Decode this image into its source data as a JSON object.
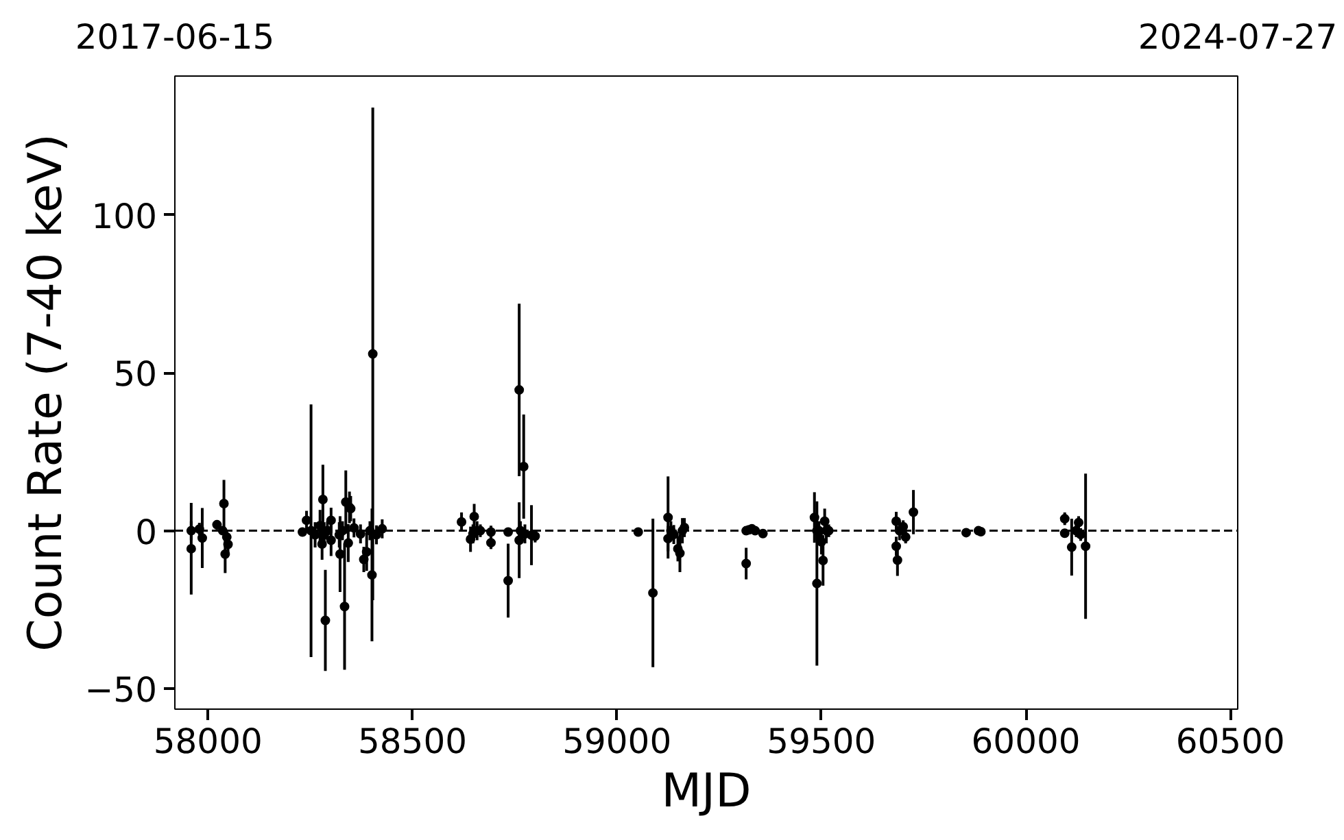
{
  "chart_data": {
    "type": "scatter",
    "xlabel": "MJD",
    "ylabel": "Count Rate (7-40 keV)",
    "marker": "circle",
    "grid": false,
    "xlim": [
      57919,
      60518
    ],
    "xticks": [
      58000,
      58500,
      59000,
      59500,
      60000,
      60500
    ],
    "x2lim": [
      "2017-06-15",
      "2024-07-27"
    ],
    "x2ticks": [
      "2017-06-15",
      "2024-07-27"
    ],
    "ylim": [
      -56.5,
      144
    ],
    "yticks": [
      -50,
      0,
      50,
      100
    ],
    "ref_lines": [
      {
        "axis": "y",
        "value": 0,
        "line_style": "dashed",
        "color": "#000000"
      }
    ],
    "series": [
      {
        "color": "#000000",
        "x": [
          57959,
          57959,
          57979,
          57986,
          58022,
          58036,
          58039,
          58042,
          58046,
          58049,
          58231,
          58241,
          58252,
          58262,
          58274,
          58279,
          58281,
          58284,
          58287,
          58292,
          58301,
          58301,
          58321,
          58323,
          58329,
          58334,
          58337,
          58343,
          58346,
          58349,
          58357,
          58373,
          58381,
          58388,
          58396,
          58401,
          58403,
          58412,
          58426,
          58620,
          58642,
          58648,
          58651,
          58658,
          58666,
          58692,
          58692,
          58734,
          58734,
          58761,
          58761,
          58764,
          58772,
          58775,
          58791,
          58800,
          59052,
          59088,
          59125,
          59125,
          59132,
          59139,
          59149,
          59154,
          59160,
          59165,
          59316,
          59316,
          59323,
          59330,
          59338,
          59357,
          59483,
          59489,
          59489,
          59494,
          59500,
          59504,
          59508,
          59512,
          59518,
          59683,
          59683,
          59686,
          59691,
          59700,
          59706,
          59725,
          59854,
          59884,
          59890,
          60095,
          60095,
          60112,
          60123,
          60129,
          60134,
          60146
        ],
        "values": [
          0,
          -5.7,
          0.5,
          -2.3,
          1.9,
          0,
          8.6,
          -7.4,
          -2,
          -4.3,
          -0.4,
          3.3,
          0,
          -1.3,
          1.6,
          -4.2,
          9.9,
          -1.3,
          -28.4,
          0,
          3.3,
          -3,
          -1.3,
          -7.4,
          0,
          -24,
          9.1,
          -3.9,
          7.4,
          7,
          0.9,
          -1,
          -9.1,
          -6.7,
          0,
          -14,
          56,
          -1.3,
          0.6,
          2.8,
          -2.7,
          -1,
          4.5,
          0,
          0,
          -0.4,
          -3.8,
          -0.4,
          -15.8,
          44.6,
          -3,
          0,
          20.3,
          -1,
          -1.4,
          -1.7,
          -0.4,
          -19.7,
          4.2,
          -2.5,
          0,
          -1.2,
          -5.7,
          -7.1,
          0,
          1,
          0,
          -10.4,
          0.3,
          0.6,
          0,
          -0.9,
          4.2,
          0,
          -16.7,
          0,
          -3.5,
          -9.4,
          3,
          0,
          0,
          -4.9,
          3,
          -9.3,
          0,
          1.3,
          -2,
          5.9,
          -0.6,
          0,
          -0.3,
          3.8,
          -0.8,
          -5.2,
          0,
          2.6,
          -1.2,
          -4.9
        ],
        "errors": [
          3,
          14.5,
          2,
          9.5,
          1.5,
          1,
          7.5,
          6,
          2,
          3,
          1,
          3,
          40,
          4,
          5,
          5,
          11,
          4,
          16,
          3,
          4,
          5,
          4,
          12,
          3,
          20,
          10,
          6,
          5,
          4,
          3,
          3,
          4,
          6,
          3,
          21,
          78,
          3,
          3,
          3,
          4,
          3,
          4,
          3,
          2,
          2,
          2,
          1,
          11.7,
          27.3,
          12,
          3,
          16.5,
          3,
          9.5,
          2,
          1,
          23.5,
          13,
          4,
          3,
          3,
          4,
          6,
          4,
          3,
          1,
          5,
          1,
          1,
          1,
          1,
          8,
          3,
          26,
          3,
          4,
          8,
          4,
          4,
          2,
          3,
          3,
          5,
          3,
          2,
          2,
          7,
          1,
          1,
          1,
          2,
          1,
          9,
          2,
          2,
          2,
          23
        ]
      }
    ]
  }
}
